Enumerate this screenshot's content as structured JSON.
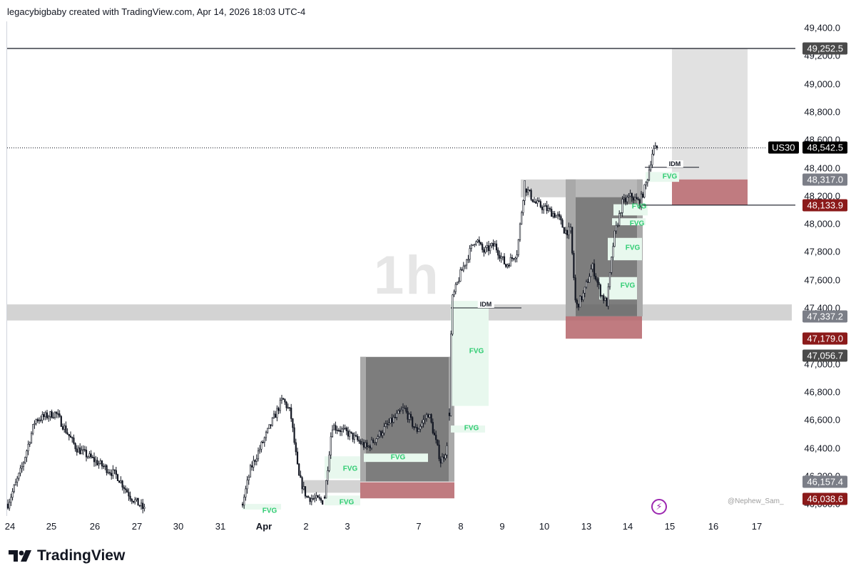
{
  "header": {
    "text": "legacybigbaby created with TradingView.com, Apr 14, 2026 18:03 UTC-4"
  },
  "brand": {
    "name": "TradingView"
  },
  "watermark": "1h",
  "signature": "@Nephew_Sam_",
  "colors": {
    "up": "#131722",
    "fvg_fill": "#e8f8ee",
    "fvg_text": "#2ecc71",
    "dark_box": "#606060",
    "gray_box": "#c8c8c8",
    "red_box": "#b5646a",
    "tag_red": "#8b1a1a",
    "tag_gray": "#7b7e87",
    "tag_dark": "#4a4a4a"
  },
  "chart_data": {
    "type": "candlestick",
    "symbol": "US30",
    "timeframe": "1h",
    "last_price": 48542.5,
    "ylim": [
      45960,
      49500
    ],
    "y_ticks": [
      "46,000.0",
      "46,200.0",
      "46,400.0",
      "46,600.0",
      "46,800.0",
      "47,000.0",
      "47,200.0",
      "47,400.0",
      "47,600.0",
      "47,800.0",
      "48,000.0",
      "48,200.0",
      "48,400.0",
      "48,600.0",
      "48,800.0",
      "49,000.0",
      "49,200.0",
      "49,400.0"
    ],
    "x_ticks": [
      {
        "label": "24",
        "bold": false
      },
      {
        "label": "25",
        "bold": false
      },
      {
        "label": "26",
        "bold": false
      },
      {
        "label": "27",
        "bold": false
      },
      {
        "label": "30",
        "bold": false
      },
      {
        "label": "31",
        "bold": false
      },
      {
        "label": "Apr",
        "bold": true
      },
      {
        "label": "2",
        "bold": false
      },
      {
        "label": "3",
        "bold": false
      },
      {
        "label": "7",
        "bold": false
      },
      {
        "label": "8",
        "bold": false
      },
      {
        "label": "9",
        "bold": false
      },
      {
        "label": "10",
        "bold": false
      },
      {
        "label": "13",
        "bold": false
      },
      {
        "label": "14",
        "bold": false
      },
      {
        "label": "15",
        "bold": false
      },
      {
        "label": "16",
        "bold": false
      },
      {
        "label": "17",
        "bold": false
      }
    ],
    "price_tags": [
      {
        "label": "49,252.5",
        "price": 49252.5,
        "style": "dark"
      },
      {
        "label": "48,542.5",
        "price": 48542.5,
        "style": "black"
      },
      {
        "label": "48,317.0",
        "price": 48317.0,
        "style": "gray"
      },
      {
        "label": "48,133.9",
        "price": 48133.9,
        "style": "red"
      },
      {
        "label": "47,337.2",
        "price": 47337.2,
        "style": "gray"
      },
      {
        "label": "47,179.0",
        "price": 47179.0,
        "style": "red"
      },
      {
        "label": "47,056.7",
        "price": 47056.7,
        "style": "dark"
      },
      {
        "label": "46,157.4",
        "price": 46157.4,
        "style": "gray"
      },
      {
        "label": "46,038.6",
        "price": 46038.6,
        "style": "red"
      }
    ],
    "horizontal_lines": [
      49252.5,
      48133.9
    ],
    "last_price_line": 48542.5,
    "zones": [
      {
        "kind": "gray",
        "top": 47425,
        "bottom": 47310,
        "from": "24",
        "to": "open"
      },
      {
        "kind": "dark",
        "top": 47050,
        "bottom": 46160,
        "from": "3",
        "to": "7"
      },
      {
        "kind": "red",
        "top": 46155,
        "bottom": 46040,
        "from": "3",
        "to": "7"
      },
      {
        "kind": "gray",
        "top": 46170,
        "bottom": 46080,
        "from": "2",
        "to": "3"
      },
      {
        "kind": "dark",
        "top": 48317,
        "bottom": 47340,
        "from": "12",
        "to": "14"
      },
      {
        "kind": "red",
        "top": 47340,
        "bottom": 47180,
        "from": "12",
        "to": "14"
      },
      {
        "kind": "gray",
        "top": 48317,
        "bottom": 48190,
        "from": "10",
        "to": "14"
      },
      {
        "kind": "gray",
        "top": 49252.5,
        "bottom": 48317,
        "from": "15",
        "to": "16"
      },
      {
        "kind": "red",
        "top": 48317,
        "bottom": 48133.9,
        "from": "15",
        "to": "16"
      }
    ],
    "fvg_labels": [
      "FVG",
      "FVG",
      "FVG",
      "FVG",
      "FVG",
      "FVG",
      "FVG",
      "FVG",
      "FVG",
      "FVG",
      "FVG"
    ],
    "annotations": [
      "IDM",
      "IDM"
    ],
    "series": [
      {
        "segment": "Mar 24-27",
        "approx_range": [
          45960,
          46750
        ]
      },
      {
        "segment": "Mar 31 - Apr 3",
        "approx_range": [
          45980,
          46850
        ]
      },
      {
        "segment": "Apr 3-7",
        "approx_range": [
          46200,
          46760
        ]
      },
      {
        "segment": "Apr 7-10",
        "approx_range": [
          46200,
          48320
        ]
      },
      {
        "segment": "Apr 13-14",
        "approx_range": [
          47360,
          48600
        ]
      }
    ]
  }
}
